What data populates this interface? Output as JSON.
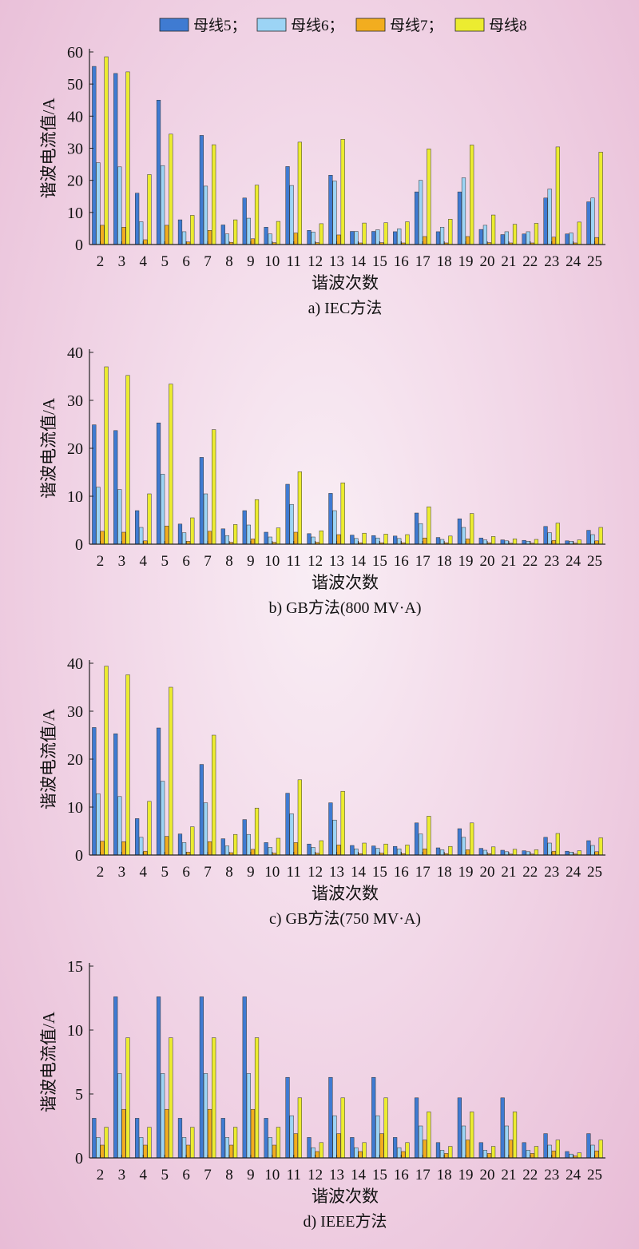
{
  "legend": {
    "items": [
      {
        "label": "母线5；",
        "color": "#3f7bd2"
      },
      {
        "label": "母线6；",
        "color": "#9cd4f5"
      },
      {
        "label": "母线7；",
        "color": "#f2ad1f"
      },
      {
        "label": "母线8",
        "color": "#ecec30"
      }
    ]
  },
  "chart_data": [
    {
      "type": "bar",
      "caption": "a) IEC方法",
      "xlabel": "谐波次数",
      "ylabel": "谐波电流值/A",
      "ylim": [
        0,
        60
      ],
      "yticks": [
        0,
        10,
        20,
        30,
        40,
        50,
        60
      ],
      "categories": [
        "2",
        "3",
        "4",
        "5",
        "6",
        "7",
        "8",
        "9",
        "10",
        "11",
        "12",
        "13",
        "14",
        "15",
        "16",
        "17",
        "18",
        "19",
        "20",
        "21",
        "22",
        "23",
        "24",
        "25"
      ],
      "series": [
        {
          "name": "母线5",
          "values": [
            55.5,
            53.3,
            16.0,
            45.0,
            7.7,
            34.0,
            6.1,
            14.5,
            5.4,
            24.3,
            4.4,
            21.6,
            4.1,
            4.1,
            4.0,
            16.4,
            4.0,
            16.4,
            4.7,
            3.1,
            3.3,
            14.5,
            3.3,
            13.3
          ]
        },
        {
          "name": "母线6",
          "values": [
            25.5,
            24.2,
            7.1,
            24.6,
            4.0,
            18.2,
            3.3,
            8.2,
            3.3,
            18.4,
            3.9,
            19.8,
            4.1,
            4.6,
            4.9,
            20.0,
            5.4,
            20.8,
            6.0,
            4.0,
            4.0,
            17.3,
            3.6,
            14.5
          ]
        },
        {
          "name": "母线7",
          "values": [
            6.0,
            5.4,
            1.5,
            6.0,
            0.8,
            4.4,
            0.7,
            1.8,
            0.6,
            3.6,
            0.6,
            3.0,
            0.5,
            0.6,
            0.5,
            2.5,
            0.5,
            2.5,
            0.6,
            0.5,
            0.5,
            2.3,
            0.5,
            2.2
          ]
        },
        {
          "name": "母线8",
          "values": [
            58.5,
            53.8,
            21.8,
            34.4,
            9.1,
            31.1,
            7.7,
            18.5,
            7.2,
            31.9,
            6.5,
            32.8,
            6.7,
            6.8,
            7.1,
            29.8,
            7.9,
            31.0,
            9.2,
            6.3,
            6.6,
            30.4,
            7.0,
            28.8
          ]
        }
      ]
    },
    {
      "type": "bar",
      "caption": "b) GB方法(800 MV·A)",
      "xlabel": "谐波次数",
      "ylabel": "谐波电流值/A",
      "ylim": [
        0,
        40
      ],
      "yticks": [
        0,
        10,
        20,
        30,
        40
      ],
      "categories": [
        "2",
        "3",
        "4",
        "5",
        "6",
        "7",
        "8",
        "9",
        "10",
        "11",
        "12",
        "13",
        "14",
        "15",
        "16",
        "17",
        "18",
        "19",
        "20",
        "21",
        "22",
        "23",
        "24",
        "25"
      ],
      "series": [
        {
          "name": "母线5",
          "values": [
            24.9,
            23.7,
            7.0,
            25.3,
            4.2,
            18.1,
            3.2,
            7.0,
            2.5,
            12.5,
            2.2,
            10.6,
            1.9,
            1.8,
            1.7,
            6.5,
            1.4,
            5.3,
            1.3,
            0.9,
            0.8,
            3.7,
            0.7,
            2.9
          ]
        },
        {
          "name": "母线6",
          "values": [
            11.9,
            11.4,
            3.5,
            14.6,
            2.4,
            10.5,
            1.8,
            4.0,
            1.5,
            8.3,
            1.5,
            7.0,
            1.2,
            1.3,
            1.2,
            4.3,
            1.0,
            3.5,
            0.9,
            0.7,
            0.6,
            2.4,
            0.6,
            2.0
          ]
        },
        {
          "name": "母线7",
          "values": [
            2.7,
            2.5,
            0.7,
            3.8,
            0.6,
            2.7,
            0.4,
            1.1,
            0.4,
            2.5,
            0.4,
            2.0,
            0.3,
            0.3,
            0.3,
            1.3,
            0.3,
            1.1,
            0.3,
            0.2,
            0.2,
            0.8,
            0.2,
            0.7
          ]
        },
        {
          "name": "母线8",
          "values": [
            37.0,
            35.2,
            10.5,
            33.4,
            5.5,
            23.9,
            4.1,
            9.3,
            3.4,
            15.1,
            2.8,
            12.8,
            2.3,
            2.1,
            2.0,
            7.8,
            1.7,
            6.4,
            1.6,
            1.1,
            1.0,
            4.4,
            0.9,
            3.5
          ]
        }
      ]
    },
    {
      "type": "bar",
      "caption": "c) GB方法(750 MV·A)",
      "xlabel": "谐波次数",
      "ylabel": "谐波电流值/A",
      "ylim": [
        0,
        40
      ],
      "yticks": [
        0,
        10,
        20,
        30,
        40
      ],
      "categories": [
        "2",
        "3",
        "4",
        "5",
        "6",
        "7",
        "8",
        "9",
        "10",
        "11",
        "12",
        "13",
        "14",
        "15",
        "16",
        "17",
        "18",
        "19",
        "20",
        "21",
        "22",
        "23",
        "24",
        "25"
      ],
      "series": [
        {
          "name": "母线5",
          "values": [
            26.6,
            25.3,
            7.6,
            26.5,
            4.4,
            18.9,
            3.4,
            7.4,
            2.6,
            12.9,
            2.3,
            10.9,
            2.0,
            1.9,
            1.8,
            6.7,
            1.5,
            5.5,
            1.4,
            1.0,
            0.9,
            3.7,
            0.8,
            3.0
          ]
        },
        {
          "name": "母线6",
          "values": [
            12.8,
            12.2,
            3.7,
            15.4,
            2.6,
            10.9,
            1.9,
            4.3,
            1.6,
            8.6,
            1.6,
            7.3,
            1.3,
            1.4,
            1.3,
            4.4,
            1.1,
            3.7,
            1.0,
            0.7,
            0.7,
            2.5,
            0.6,
            2.0
          ]
        },
        {
          "name": "母线7",
          "values": [
            2.9,
            2.8,
            0.8,
            3.9,
            0.6,
            2.8,
            0.5,
            1.2,
            0.4,
            2.6,
            0.4,
            2.1,
            0.3,
            0.4,
            0.3,
            1.3,
            0.3,
            1.1,
            0.3,
            0.2,
            0.2,
            0.8,
            0.2,
            0.7
          ]
        },
        {
          "name": "母线8",
          "values": [
            39.4,
            37.6,
            11.2,
            35.0,
            5.9,
            25.0,
            4.3,
            9.8,
            3.5,
            15.7,
            3.0,
            13.3,
            2.5,
            2.3,
            2.1,
            8.1,
            1.8,
            6.7,
            1.7,
            1.2,
            1.1,
            4.5,
            0.9,
            3.6
          ]
        }
      ]
    },
    {
      "type": "bar",
      "caption": "d) IEEE方法",
      "xlabel": "谐波次数",
      "ylabel": "谐波电流值/A",
      "ylim": [
        0,
        15
      ],
      "yticks": [
        0,
        5,
        10,
        15
      ],
      "categories": [
        "2",
        "3",
        "4",
        "5",
        "6",
        "7",
        "8",
        "9",
        "10",
        "11",
        "12",
        "13",
        "14",
        "15",
        "16",
        "17",
        "18",
        "19",
        "20",
        "21",
        "22",
        "23",
        "24",
        "25"
      ],
      "series": [
        {
          "name": "母线5",
          "values": [
            3.1,
            12.6,
            3.1,
            12.6,
            3.1,
            12.6,
            3.1,
            12.6,
            3.1,
            6.3,
            1.6,
            6.3,
            1.6,
            6.3,
            1.6,
            4.7,
            1.2,
            4.7,
            1.2,
            4.7,
            1.2,
            1.9,
            0.5,
            1.9
          ]
        },
        {
          "name": "母线6",
          "values": [
            1.6,
            6.6,
            1.6,
            6.6,
            1.6,
            6.6,
            1.6,
            6.6,
            1.6,
            3.3,
            0.8,
            3.3,
            0.8,
            3.3,
            0.8,
            2.5,
            0.6,
            2.5,
            0.6,
            2.5,
            0.6,
            1.0,
            0.3,
            1.0
          ]
        },
        {
          "name": "母线7",
          "values": [
            1.0,
            3.8,
            1.0,
            3.8,
            1.0,
            3.8,
            1.0,
            3.8,
            1.0,
            1.9,
            0.5,
            1.9,
            0.5,
            1.9,
            0.5,
            1.4,
            0.35,
            1.4,
            0.35,
            1.4,
            0.35,
            0.55,
            0.15,
            0.55
          ]
        },
        {
          "name": "母线8",
          "values": [
            2.4,
            9.4,
            2.4,
            9.4,
            2.4,
            9.4,
            2.4,
            9.4,
            2.4,
            4.7,
            1.2,
            4.7,
            1.2,
            4.7,
            1.2,
            3.6,
            0.9,
            3.6,
            0.9,
            3.6,
            0.9,
            1.4,
            0.4,
            1.4
          ]
        }
      ]
    }
  ]
}
